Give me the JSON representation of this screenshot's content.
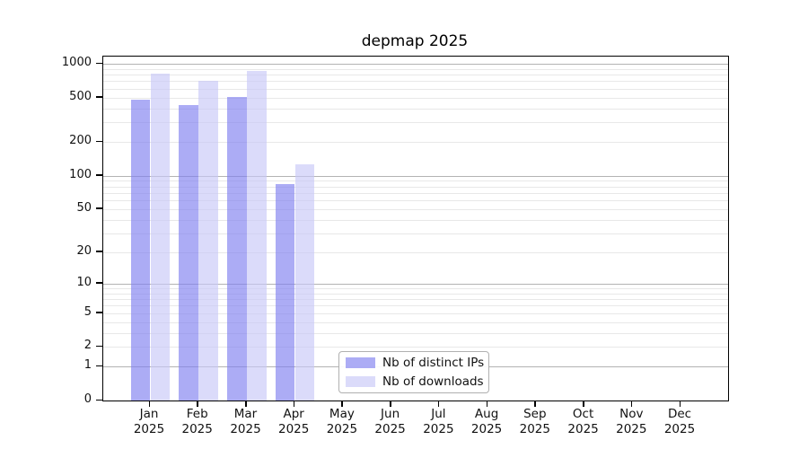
{
  "title": "depmap 2025",
  "legend": {
    "items": [
      {
        "label": "Nb of distinct IPs",
        "color": "rgba(128,128,240,0.65)"
      },
      {
        "label": "Nb of downloads",
        "color": "rgba(200,200,248,0.65)"
      }
    ],
    "position": "bottom-center-inside"
  },
  "chart_data": {
    "type": "bar",
    "title": "depmap 2025",
    "categories": [
      "Jan",
      "Feb",
      "Mar",
      "Apr",
      "May",
      "Jun",
      "Jul",
      "Aug",
      "Sep",
      "Oct",
      "Nov",
      "Dec"
    ],
    "category_sublabel": "2025",
    "series": [
      {
        "name": "Nb of distinct IPs",
        "color": "rgba(128,128,240,0.65)",
        "values": [
          480,
          430,
          505,
          84,
          0,
          0,
          0,
          0,
          0,
          0,
          0,
          0
        ]
      },
      {
        "name": "Nb of downloads",
        "color": "rgba(200,200,248,0.65)",
        "values": [
          815,
          705,
          860,
          126,
          0,
          0,
          0,
          0,
          0,
          0,
          0,
          0
        ]
      }
    ],
    "xlabel": "",
    "ylabel": "",
    "y_scale": "log10(value+1)",
    "ylim": [
      0,
      1160
    ],
    "y_ticks": [
      0,
      1,
      2,
      5,
      10,
      20,
      50,
      100,
      200,
      500,
      1000
    ],
    "y_major_gridlines": [
      1,
      10,
      100,
      1000
    ],
    "y_minor_gridlines": [
      2,
      3,
      4,
      6,
      7,
      8,
      9,
      5,
      20,
      30,
      40,
      50,
      60,
      70,
      80,
      90,
      200,
      300,
      400,
      500,
      600,
      700,
      800,
      900
    ],
    "grid": "horizontal",
    "legend_position": "lower center inside axes"
  },
  "colors": {
    "frame": "#000000",
    "major_grid": "#b3b3b3",
    "minor_grid": "#e8e8e8",
    "background": "#ffffff"
  }
}
